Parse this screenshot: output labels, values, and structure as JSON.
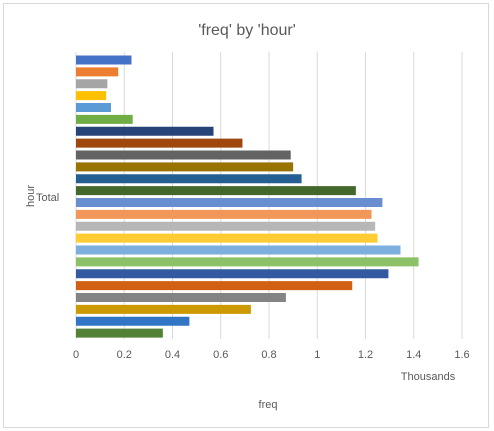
{
  "chart_data": {
    "type": "bar",
    "orientation": "horizontal",
    "title": "'freq' by 'hour'",
    "xlabel": "freq",
    "ylabel": "hour",
    "x_unit_label": "Thousands",
    "category_label": "Total",
    "xlim": [
      0,
      1.6
    ],
    "x_ticks": [
      "0",
      "0.2",
      "0.4",
      "0.6",
      "0.8",
      "1",
      "1.2",
      "1.4",
      "1.6"
    ],
    "gridlines": true,
    "legend": "none",
    "series": [
      {
        "value": 0.23,
        "color": "#4472C4"
      },
      {
        "value": 0.175,
        "color": "#ED7D31"
      },
      {
        "value": 0.13,
        "color": "#A5A5A5"
      },
      {
        "value": 0.125,
        "color": "#FFC000"
      },
      {
        "value": 0.145,
        "color": "#5B9BD5"
      },
      {
        "value": 0.235,
        "color": "#70AD47"
      },
      {
        "value": 0.57,
        "color": "#264478"
      },
      {
        "value": 0.69,
        "color": "#9E480E"
      },
      {
        "value": 0.89,
        "color": "#636363"
      },
      {
        "value": 0.9,
        "color": "#997300"
      },
      {
        "value": 0.935,
        "color": "#255E91"
      },
      {
        "value": 1.16,
        "color": "#43682B"
      },
      {
        "value": 1.27,
        "color": "#698ED0"
      },
      {
        "value": 1.225,
        "color": "#F1975A"
      },
      {
        "value": 1.24,
        "color": "#B7B7B7"
      },
      {
        "value": 1.25,
        "color": "#FFCD33"
      },
      {
        "value": 1.345,
        "color": "#7CAFDD"
      },
      {
        "value": 1.42,
        "color": "#8CC168"
      },
      {
        "value": 1.295,
        "color": "#335AA1"
      },
      {
        "value": 1.145,
        "color": "#D26012"
      },
      {
        "value": 0.87,
        "color": "#848484"
      },
      {
        "value": 0.725,
        "color": "#CC9A00"
      },
      {
        "value": 0.47,
        "color": "#3275C4"
      },
      {
        "value": 0.36,
        "color": "#548235"
      }
    ]
  }
}
